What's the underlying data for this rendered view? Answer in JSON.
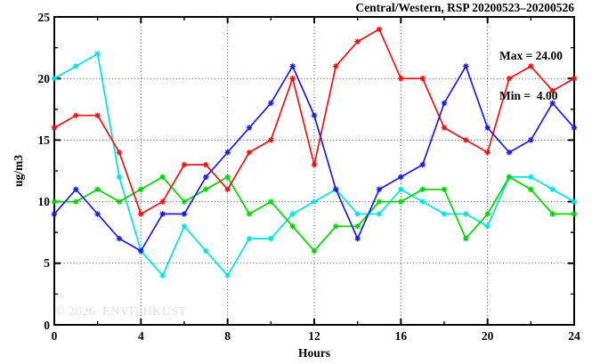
{
  "window": {
    "title": "Central/Western, RSP 20200523–20200526"
  },
  "annotation": {
    "max_label": "Max = 24.00",
    "min_label": "Min =  4.00"
  },
  "watermark": "© 2026  ENVF, HKUST",
  "chart_data": {
    "type": "line",
    "title": "Central/Western, RSP 20200523–20200526",
    "xlabel": "Hours",
    "ylabel": "ug/m3",
    "xlim": [
      0,
      24
    ],
    "ylim": [
      0,
      25
    ],
    "x_ticks": [
      0,
      4,
      8,
      12,
      16,
      20,
      24
    ],
    "y_ticks": [
      0,
      5,
      10,
      15,
      20,
      25
    ],
    "grid": true,
    "legend_position": "none",
    "stats": {
      "max": 24.0,
      "min": 4.0
    },
    "x": [
      0,
      1,
      2,
      3,
      4,
      5,
      6,
      7,
      8,
      9,
      10,
      11,
      12,
      13,
      14,
      15,
      16,
      17,
      18,
      19,
      20,
      21,
      22,
      23,
      24
    ],
    "series": [
      {
        "name": "red",
        "color": "#ee1111",
        "values": [
          16,
          17,
          17,
          14,
          9,
          10,
          13,
          13,
          11,
          14,
          15,
          20,
          13,
          21,
          23,
          24,
          20,
          20,
          16,
          15,
          14,
          20,
          21,
          19,
          20
        ]
      },
      {
        "name": "blue",
        "color": "#1c1ce0",
        "values": [
          9,
          11,
          9,
          7,
          6,
          9,
          9,
          12,
          14,
          16,
          18,
          21,
          17,
          11,
          7,
          11,
          12,
          13,
          18,
          21,
          16,
          14,
          15,
          18,
          16
        ]
      },
      {
        "name": "green",
        "color": "#00d300",
        "values": [
          10,
          10,
          11,
          10,
          11,
          12,
          10,
          11,
          12,
          9,
          10,
          8,
          6,
          8,
          8,
          10,
          10,
          11,
          11,
          7,
          9,
          12,
          11,
          9,
          9
        ]
      },
      {
        "name": "cyan",
        "color": "#00e2e2",
        "values": [
          20,
          21,
          22,
          12,
          6,
          4,
          8,
          6,
          4,
          7,
          7,
          9,
          10,
          11,
          9,
          9,
          11,
          10,
          9,
          9,
          8,
          12,
          12,
          11,
          10
        ]
      }
    ]
  }
}
